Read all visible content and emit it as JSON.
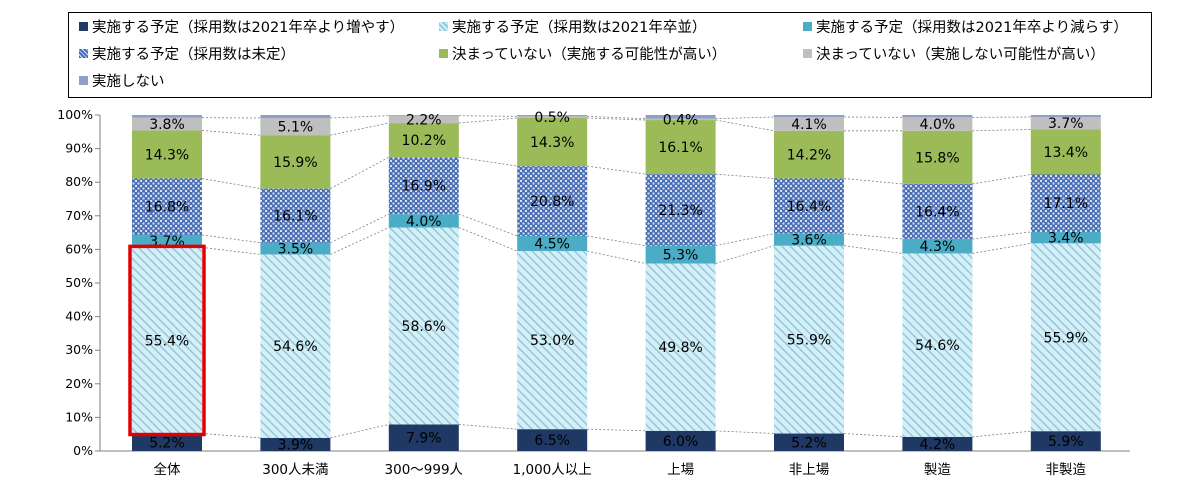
{
  "chart_data": {
    "type": "bar",
    "stacked": true,
    "percent_stacked": true,
    "title": "",
    "xlabel": "",
    "ylabel": "",
    "ylim": [
      0,
      100
    ],
    "y_ticks": [
      "0%",
      "10%",
      "20%",
      "30%",
      "40%",
      "50%",
      "60%",
      "70%",
      "80%",
      "90%",
      "100%"
    ],
    "categories": [
      "全体",
      "300人未満",
      "300～999人",
      "1,000人以上",
      "上場",
      "非上場",
      "製造",
      "非製造"
    ],
    "legend_position": "top",
    "series": [
      {
        "name": "実施する予定（採用数は2021年卒より増やす）",
        "color": "#1f3864",
        "pattern": "solid",
        "values": [
          5.2,
          3.9,
          7.9,
          6.5,
          6.0,
          5.2,
          4.2,
          5.9
        ],
        "labels": [
          "5.2%",
          "3.9%",
          "7.9%",
          "6.5%",
          "6.0%",
          "5.2%",
          "4.2%",
          "5.9%"
        ]
      },
      {
        "name": "実施する予定（採用数は2021年卒並）",
        "color": "#9dd3e6",
        "pattern": "diagonal",
        "values": [
          55.4,
          54.6,
          58.6,
          53.0,
          49.8,
          55.9,
          54.6,
          55.9
        ],
        "labels": [
          "55.4%",
          "54.6%",
          "58.6%",
          "53.0%",
          "49.8%",
          "55.9%",
          "54.6%",
          "55.9%"
        ]
      },
      {
        "name": "実施する予定（採用数は2021年卒より減らす）",
        "color": "#4bacc6",
        "pattern": "solid",
        "values": [
          3.7,
          3.5,
          4.0,
          4.5,
          5.3,
          3.6,
          4.3,
          3.4
        ],
        "labels": [
          "3.7%",
          "3.5%",
          "4.0%",
          "4.5%",
          "5.3%",
          "3.6%",
          "4.3%",
          "3.4%"
        ]
      },
      {
        "name": "実施する予定（採用数は未定）",
        "color": "#4a6fb5",
        "pattern": "lattice",
        "values": [
          16.8,
          16.1,
          16.9,
          20.8,
          21.3,
          16.4,
          16.4,
          17.1
        ],
        "labels": [
          "16.8%",
          "16.1%",
          "16.9%",
          "20.8%",
          "21.3%",
          "16.4%",
          "16.4%",
          "17.1%"
        ]
      },
      {
        "name": "決まっていない（実施する可能性が高い）",
        "color": "#9bbb59",
        "pattern": "solid",
        "values": [
          14.3,
          15.9,
          10.2,
          14.3,
          16.1,
          14.2,
          15.8,
          13.4
        ],
        "labels": [
          "14.3%",
          "15.9%",
          "10.2%",
          "14.3%",
          "16.1%",
          "14.2%",
          "15.8%",
          "13.4%"
        ]
      },
      {
        "name": "決まっていない（実施しない可能性が高い）",
        "color": "#bfbfbf",
        "pattern": "solid",
        "values": [
          3.8,
          5.1,
          2.2,
          0.5,
          0.4,
          4.1,
          4.0,
          3.7
        ],
        "labels": [
          "3.8%",
          "5.1%",
          "2.2%",
          "0.5%",
          "0.4%",
          "4.1%",
          "4.0%",
          "3.7%"
        ]
      },
      {
        "name": "実施しない",
        "color": "#8ea0c8",
        "pattern": "solid",
        "values": [
          0.8,
          0.9,
          0.2,
          0.4,
          1.1,
          0.6,
          0.7,
          0.6
        ],
        "labels": []
      }
    ],
    "highlight": {
      "category_index": 0,
      "series_index": 1,
      "color": "#e00000"
    },
    "series_connector_lines": true,
    "grid": false
  }
}
